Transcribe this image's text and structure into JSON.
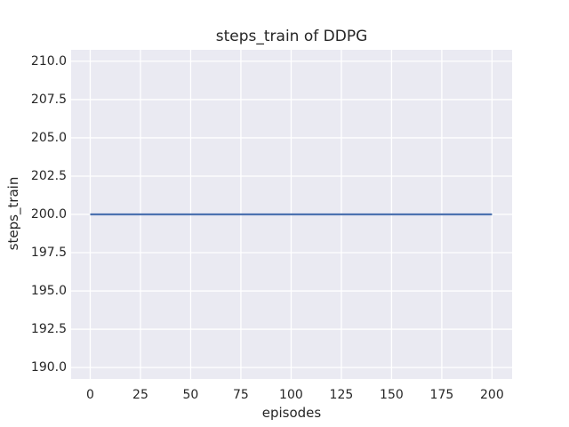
{
  "figure": {
    "title": "steps_train of DDPG",
    "xlabel": "episodes",
    "ylabel": "steps_train"
  },
  "chart_data": {
    "type": "line",
    "title": "steps_train of DDPG",
    "xlabel": "episodes",
    "ylabel": "steps_train",
    "xlim": [
      -9.5,
      210
    ],
    "ylim": [
      189.25,
      210.75
    ],
    "xticks": [
      0,
      25,
      50,
      75,
      100,
      125,
      150,
      175,
      200
    ],
    "xtick_labels": [
      "0",
      "25",
      "50",
      "75",
      "100",
      "125",
      "150",
      "175",
      "200"
    ],
    "yticks": [
      190.0,
      192.5,
      195.0,
      197.5,
      200.0,
      202.5,
      205.0,
      207.5,
      210.0
    ],
    "ytick_labels": [
      "190.0",
      "192.5",
      "195.0",
      "197.5",
      "200.0",
      "202.5",
      "205.0",
      "207.5",
      "210.0"
    ],
    "grid": true,
    "legend": false,
    "series": [
      {
        "name": "steps_train",
        "x": [
          0,
          200
        ],
        "y": [
          200,
          200
        ],
        "color": "#4c72b0",
        "linewidth": 2.2
      }
    ],
    "colors": {
      "figure_bg": "#ffffff",
      "axes_bg": "#eaeaf2",
      "grid": "#ffffff",
      "text": "#262626",
      "line": "#4c72b0"
    }
  }
}
